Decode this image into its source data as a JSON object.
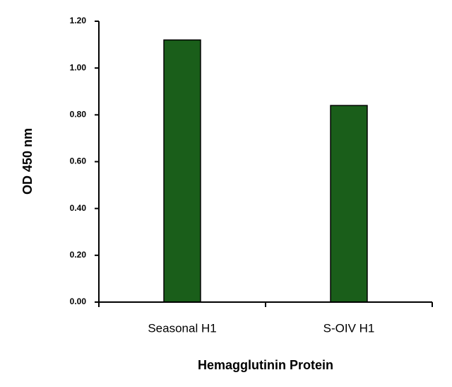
{
  "chart_data": {
    "type": "bar",
    "x_label": "Hemagglutinin Protein",
    "y_label": "OD 450 nm",
    "categories": [
      "Seasonal H1",
      "S-OIV H1"
    ],
    "values": [
      1.12,
      0.84
    ],
    "color": "#1a5e1a",
    "ylim": [
      0,
      1.2
    ],
    "yticks": [
      {
        "value": 0,
        "label": "0.00"
      },
      {
        "value": 0.2,
        "label": "0.20"
      },
      {
        "value": 0.4,
        "label": "0.40"
      },
      {
        "value": 0.6,
        "label": "0.60"
      },
      {
        "value": 0.8,
        "label": "0.80"
      },
      {
        "value": 1,
        "label": "1.00"
      },
      {
        "value": 1.2,
        "label": "1.20"
      }
    ],
    "grid": false
  }
}
